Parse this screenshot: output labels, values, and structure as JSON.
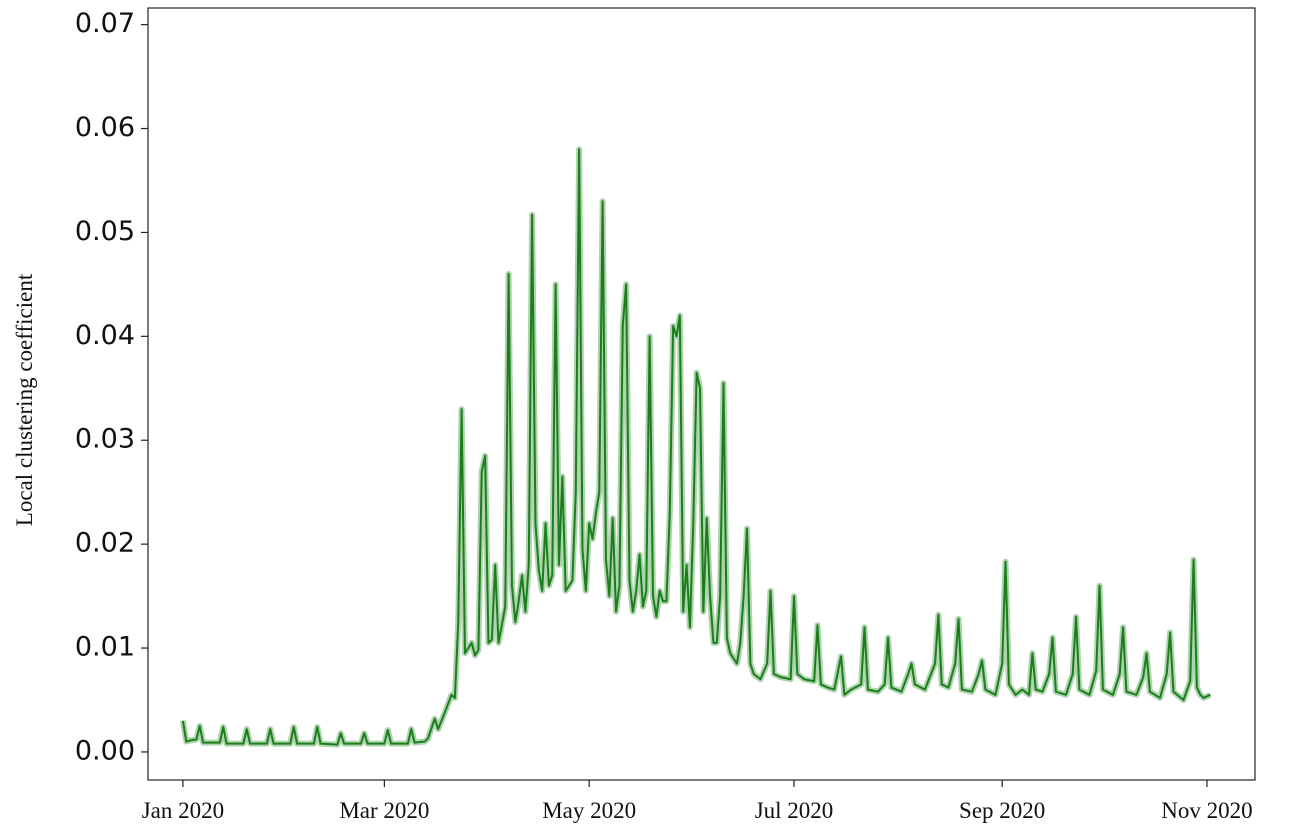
{
  "chart_data": {
    "type": "line",
    "ylabel": "Local clustering coefficient",
    "x": [
      0,
      1,
      2,
      4,
      5,
      6,
      11,
      12,
      13,
      18,
      19,
      20,
      25,
      26,
      27,
      32,
      33,
      34,
      39,
      40,
      41,
      46,
      47,
      48,
      53,
      54,
      55,
      60,
      61,
      62,
      67,
      68,
      69,
      72,
      73,
      75,
      76,
      78,
      80,
      81,
      82,
      83,
      84,
      86,
      87,
      88,
      89,
      90,
      91,
      92,
      93,
      94,
      96,
      97,
      98,
      99,
      100,
      101,
      102,
      103,
      104,
      105,
      106,
      107,
      108,
      109,
      110,
      111,
      112,
      113,
      114,
      116,
      117,
      118,
      119,
      120,
      121,
      122,
      123,
      124,
      125,
      126,
      127,
      128,
      129,
      130,
      131,
      132,
      133,
      134,
      135,
      136,
      137,
      138,
      139,
      140,
      141,
      142,
      143,
      144,
      145,
      146,
      147,
      148,
      149,
      150,
      151,
      152,
      153,
      154,
      155,
      156,
      157,
      158,
      159,
      160,
      161,
      162,
      163,
      165,
      166,
      167,
      168,
      169,
      170,
      172,
      174,
      175,
      176,
      178,
      181,
      182,
      183,
      185,
      188,
      189,
      190,
      192,
      194,
      196,
      197,
      199,
      202,
      203,
      204,
      207,
      209,
      210,
      211,
      214,
      216,
      217,
      218,
      221,
      224,
      225,
      226,
      228,
      230,
      231,
      232,
      235,
      237,
      238,
      239,
      242,
      244,
      245,
      246,
      248,
      250,
      252,
      253,
      254,
      256,
      258,
      259,
      260,
      263,
      265,
      266,
      267,
      270,
      272,
      273,
      274,
      277,
      279,
      280,
      281,
      284,
      286,
      287,
      288,
      291,
      293,
      294,
      295,
      298,
      300,
      301,
      302,
      303,
      304,
      306
    ],
    "series": [
      {
        "color": "#1a7f1a",
        "values": [
          0.003,
          0.001,
          0.0011,
          0.0012,
          0.0025,
          0.0009,
          0.0009,
          0.0024,
          0.0008,
          0.0008,
          0.0022,
          0.0008,
          0.0008,
          0.0022,
          0.0008,
          0.0008,
          0.0024,
          0.0008,
          0.0008,
          0.0024,
          0.0008,
          0.0007,
          0.0018,
          0.0008,
          0.0008,
          0.0018,
          0.0008,
          0.0008,
          0.0021,
          0.0008,
          0.0008,
          0.0022,
          0.0009,
          0.001,
          0.0013,
          0.0032,
          0.0022,
          0.0038,
          0.0055,
          0.0052,
          0.0125,
          0.033,
          0.0095,
          0.0105,
          0.0093,
          0.0098,
          0.027,
          0.0285,
          0.0105,
          0.0108,
          0.018,
          0.0105,
          0.014,
          0.046,
          0.016,
          0.0125,
          0.0145,
          0.017,
          0.0135,
          0.018,
          0.0517,
          0.022,
          0.0175,
          0.0155,
          0.022,
          0.016,
          0.017,
          0.045,
          0.018,
          0.0265,
          0.0155,
          0.0165,
          0.025,
          0.058,
          0.0195,
          0.0155,
          0.022,
          0.0205,
          0.023,
          0.025,
          0.053,
          0.0185,
          0.015,
          0.0225,
          0.0135,
          0.016,
          0.041,
          0.045,
          0.0165,
          0.0135,
          0.0155,
          0.019,
          0.014,
          0.0155,
          0.04,
          0.015,
          0.013,
          0.0155,
          0.0145,
          0.0145,
          0.023,
          0.041,
          0.04,
          0.042,
          0.0135,
          0.018,
          0.012,
          0.022,
          0.0365,
          0.035,
          0.0135,
          0.0225,
          0.015,
          0.0105,
          0.0105,
          0.015,
          0.0355,
          0.011,
          0.0095,
          0.0085,
          0.0105,
          0.015,
          0.0215,
          0.0085,
          0.0075,
          0.007,
          0.0085,
          0.0155,
          0.0075,
          0.0072,
          0.007,
          0.015,
          0.0075,
          0.007,
          0.0068,
          0.0122,
          0.0065,
          0.0062,
          0.006,
          0.0092,
          0.0055,
          0.006,
          0.0065,
          0.012,
          0.006,
          0.0058,
          0.0065,
          0.011,
          0.0062,
          0.0058,
          0.0075,
          0.0085,
          0.0065,
          0.006,
          0.0085,
          0.0132,
          0.0065,
          0.0062,
          0.0085,
          0.0128,
          0.006,
          0.0058,
          0.0075,
          0.0088,
          0.006,
          0.0055,
          0.0085,
          0.0183,
          0.0065,
          0.0055,
          0.006,
          0.0055,
          0.0095,
          0.006,
          0.0058,
          0.0075,
          0.011,
          0.0058,
          0.0055,
          0.0075,
          0.013,
          0.006,
          0.0055,
          0.0078,
          0.016,
          0.006,
          0.0055,
          0.0075,
          0.012,
          0.0058,
          0.0055,
          0.0072,
          0.0095,
          0.0058,
          0.0052,
          0.0075,
          0.0115,
          0.0058,
          0.005,
          0.0068,
          0.0185,
          0.0062,
          0.0055,
          0.0052,
          0.0055
        ]
      }
    ],
    "xlim": [
      -10.4,
      319.3
    ],
    "xticks": [
      {
        "value": 0,
        "label": "Jan 2020"
      },
      {
        "value": 60,
        "label": "Mar 2020"
      },
      {
        "value": 121,
        "label": "May 2020"
      },
      {
        "value": 182,
        "label": "Jul 2020"
      },
      {
        "value": 244,
        "label": "Sep 2020"
      },
      {
        "value": 305,
        "label": "Nov 2020"
      }
    ],
    "ylim": [
      -0.0027,
      0.0716
    ],
    "yticks": [
      {
        "value": 0,
        "label": "0.00"
      },
      0.01,
      0.02,
      0.03,
      0.04,
      0.05,
      0.06,
      0.07
    ],
    "grid": false
  }
}
